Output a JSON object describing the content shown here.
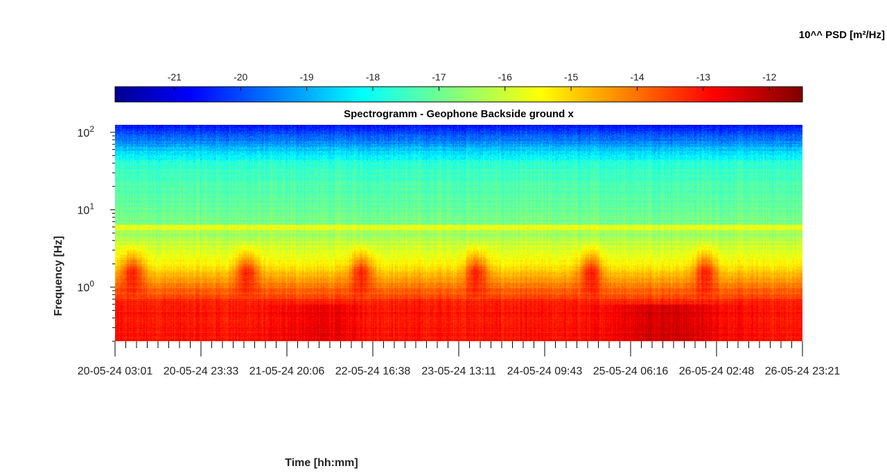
{
  "chart_data": {
    "type": "heatmap",
    "title": "Spectrogramm - Geophone Backside ground x",
    "xlabel": "Time [hh:mm]",
    "ylabel": "Frequency [Hz]",
    "y_scale": "log",
    "y_range": [
      0.2,
      125
    ],
    "x_tick_labels": [
      "20-05-24  03:01",
      "20-05-24  23:33",
      "21-05-24  20:06",
      "22-05-24  16:38",
      "23-05-24  13:11",
      "24-05-24  09:43",
      "25-05-24  06:16",
      "26-05-24  02:48",
      "26-05-24  23:21"
    ],
    "y_ticks": [
      {
        "base": "10",
        "exp": "0",
        "value": 1
      },
      {
        "base": "10",
        "exp": "1",
        "value": 10
      },
      {
        "base": "10",
        "exp": "2",
        "value": 100
      }
    ],
    "colorbar": {
      "label": "10^^ PSD [m²/Hz]",
      "range": [
        -21.9,
        -11.5
      ],
      "ticks": [
        -21,
        -20,
        -19,
        -18,
        -17,
        -16,
        -15,
        -14,
        -13,
        -12
      ],
      "colormap": "jet",
      "placement": "top"
    },
    "features": {
      "low_frequency_band_hz": [
        0.2,
        0.6
      ],
      "low_frequency_band_log_psd": -13.0,
      "mid_band_log_psd": -15.3,
      "high_frequency_log_psd": -20.5,
      "persistent_line_hz": 6,
      "periodic_activity_bursts": 6,
      "burst_band_hz": [
        0.7,
        4
      ]
    }
  }
}
